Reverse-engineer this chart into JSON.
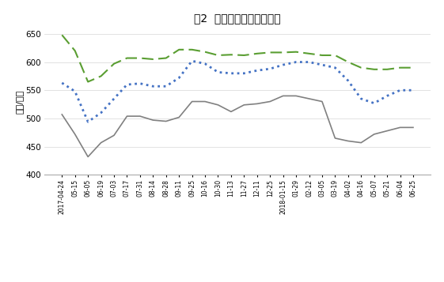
{
  "title": "图2  秦皇岛港煤炭价格情况",
  "ylabel": "（元/吨）",
  "x_labels": [
    "2017-04-24",
    "05-15",
    "06-05",
    "06-19",
    "07-03",
    "07-17",
    "07-31",
    "08-14",
    "08-28",
    "09-11",
    "09-25",
    "10-16",
    "10-30",
    "11-13",
    "11-27",
    "12-11",
    "12-25",
    "2018-01-15",
    "01-29",
    "02-12",
    "03-05",
    "03-19",
    "04-02",
    "04-16",
    "05-07",
    "05-21",
    "06-04",
    "06-25"
  ],
  "series_5500": [
    648,
    620,
    565,
    575,
    597,
    607,
    607,
    605,
    607,
    622,
    622,
    618,
    612,
    613,
    612,
    615,
    617,
    617,
    618,
    615,
    612,
    612,
    600,
    590,
    587,
    587,
    590,
    590
  ],
  "series_5000": [
    563,
    548,
    494,
    510,
    535,
    560,
    562,
    557,
    557,
    572,
    602,
    597,
    582,
    580,
    580,
    585,
    588,
    595,
    600,
    600,
    595,
    590,
    567,
    535,
    527,
    540,
    550,
    550
  ],
  "series_4500": [
    507,
    472,
    432,
    457,
    470,
    504,
    504,
    497,
    495,
    502,
    530,
    530,
    524,
    512,
    524,
    526,
    530,
    540,
    540,
    535,
    530,
    465,
    460,
    457,
    472,
    478,
    484,
    484
  ],
  "color_5500": "#5a9e32",
  "color_5000": "#4472c4",
  "color_4500": "#808080",
  "ylim": [
    400,
    660
  ],
  "yticks": [
    400,
    450,
    500,
    550,
    600,
    650
  ],
  "background_color": "#ffffff"
}
